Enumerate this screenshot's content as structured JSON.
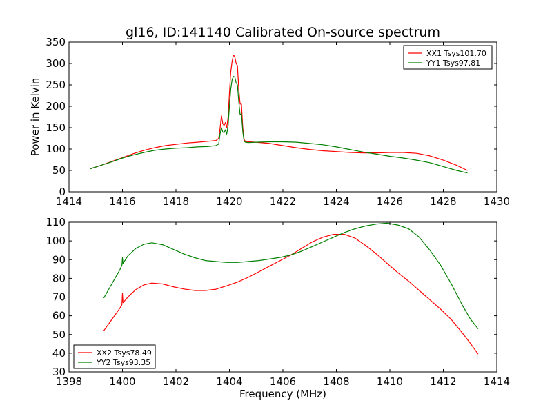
{
  "colors": {
    "red": "#ff0000",
    "green": "#008000"
  },
  "chart_data": [
    {
      "type": "line",
      "title": "gl16, ID:141140 Calibrated On-source spectrum",
      "xlabel": "",
      "ylabel": "Power in Kelvin",
      "xlim": [
        1414,
        1430
      ],
      "ylim": [
        0,
        350
      ],
      "xticks": [
        1414,
        1416,
        1418,
        1420,
        1422,
        1424,
        1426,
        1428,
        1430
      ],
      "yticks": [
        0,
        50,
        100,
        150,
        200,
        250,
        300,
        350
      ],
      "legend_position": "top-right",
      "series": [
        {
          "name": "XX1 Tsys101.70",
          "color": "#ff0000",
          "x": [
            1414.8,
            1415.2,
            1415.6,
            1416.0,
            1416.4,
            1416.8,
            1417.2,
            1417.6,
            1418.0,
            1418.4,
            1418.8,
            1419.2,
            1419.5,
            1419.6,
            1419.65,
            1419.7,
            1419.75,
            1419.8,
            1419.85,
            1419.9,
            1419.95,
            1420.0,
            1420.05,
            1420.1,
            1420.15,
            1420.2,
            1420.25,
            1420.3,
            1420.35,
            1420.4,
            1420.45,
            1420.5,
            1420.55,
            1420.6,
            1420.7,
            1421.0,
            1421.5,
            1422.0,
            1422.5,
            1423.0,
            1423.5,
            1424.0,
            1424.5,
            1425.0,
            1425.5,
            1426.0,
            1426.5,
            1427.0,
            1427.5,
            1428.0,
            1428.5,
            1428.9
          ],
          "y": [
            54,
            62,
            71,
            80,
            89,
            97,
            103,
            108,
            111,
            114,
            116,
            118,
            120,
            125,
            148,
            178,
            160,
            155,
            162,
            150,
            175,
            230,
            280,
            305,
            320,
            316,
            300,
            295,
            240,
            205,
            205,
            150,
            122,
            118,
            117,
            116,
            113,
            108,
            103,
            99,
            96,
            94,
            92,
            91,
            91,
            92,
            92,
            90,
            84,
            74,
            62,
            50
          ]
        },
        {
          "name": "YY1 Tsys97.81",
          "color": "#008000",
          "x": [
            1414.8,
            1415.2,
            1415.6,
            1416.0,
            1416.4,
            1416.8,
            1417.2,
            1417.6,
            1418.0,
            1418.4,
            1418.8,
            1419.2,
            1419.5,
            1419.6,
            1419.65,
            1419.7,
            1419.75,
            1419.8,
            1419.85,
            1419.9,
            1419.95,
            1420.0,
            1420.05,
            1420.1,
            1420.15,
            1420.2,
            1420.25,
            1420.3,
            1420.35,
            1420.4,
            1420.45,
            1420.5,
            1420.55,
            1420.6,
            1420.7,
            1421.0,
            1421.5,
            1422.0,
            1422.5,
            1423.0,
            1423.5,
            1424.0,
            1424.5,
            1425.0,
            1425.5,
            1426.0,
            1426.5,
            1427.0,
            1427.5,
            1428.0,
            1428.5,
            1428.9
          ],
          "y": [
            54,
            62,
            70,
            79,
            86,
            92,
            97,
            100,
            102,
            103,
            105,
            106,
            108,
            112,
            135,
            150,
            140,
            138,
            145,
            135,
            155,
            200,
            240,
            262,
            270,
            268,
            255,
            250,
            210,
            180,
            183,
            140,
            118,
            116,
            115,
            116,
            117,
            117,
            116,
            113,
            110,
            105,
            99,
            93,
            88,
            83,
            79,
            74,
            68,
            59,
            50,
            44
          ]
        }
      ]
    },
    {
      "type": "line",
      "title": "",
      "xlabel": "Frequency (MHz)",
      "ylabel": "",
      "xlim": [
        1398,
        1414
      ],
      "ylim": [
        30,
        110
      ],
      "xticks": [
        1398,
        1400,
        1402,
        1404,
        1406,
        1408,
        1410,
        1412,
        1414
      ],
      "yticks": [
        30,
        40,
        50,
        60,
        70,
        80,
        90,
        100,
        110
      ],
      "legend_position": "bottom-left",
      "series": [
        {
          "name": "XX2 Tsys78.49",
          "color": "#ff0000",
          "x": [
            1399.3,
            1399.6,
            1399.9,
            1399.98,
            1400.0,
            1400.02,
            1400.2,
            1400.5,
            1400.8,
            1401.1,
            1401.5,
            1401.9,
            1402.3,
            1402.7,
            1403.1,
            1403.5,
            1403.9,
            1404.3,
            1404.7,
            1405.1,
            1405.5,
            1405.9,
            1406.3,
            1406.7,
            1407.1,
            1407.5,
            1407.9,
            1408.3,
            1408.7,
            1409.1,
            1409.5,
            1409.9,
            1410.3,
            1410.7,
            1411.1,
            1411.5,
            1411.9,
            1412.3,
            1412.7,
            1413.0,
            1413.3
          ],
          "y": [
            52,
            58,
            64,
            66,
            72,
            67,
            70,
            74,
            76.5,
            77.5,
            77,
            75.5,
            74.3,
            73.5,
            73.5,
            74.2,
            76,
            78,
            80.5,
            83.5,
            86.5,
            89.5,
            92.5,
            96,
            99.5,
            102,
            103.5,
            103.5,
            101.5,
            97.5,
            93,
            88,
            83,
            78.5,
            73.5,
            68.5,
            63.5,
            58,
            51,
            45.5,
            39.5
          ]
        },
        {
          "name": "YY2 Tsys93.35",
          "color": "#008000",
          "x": [
            1399.3,
            1399.6,
            1399.9,
            1399.98,
            1400.0,
            1400.02,
            1400.2,
            1400.5,
            1400.8,
            1401.1,
            1401.5,
            1401.9,
            1402.3,
            1402.7,
            1403.1,
            1403.5,
            1403.9,
            1404.3,
            1404.7,
            1405.1,
            1405.5,
            1405.9,
            1406.3,
            1406.7,
            1407.1,
            1407.5,
            1407.9,
            1408.3,
            1408.7,
            1409.1,
            1409.5,
            1409.9,
            1410.3,
            1410.7,
            1411.1,
            1411.5,
            1411.9,
            1412.3,
            1412.7,
            1413.0,
            1413.3
          ],
          "y": [
            69.5,
            77,
            84.5,
            87,
            91,
            88,
            92,
            96,
            98.2,
            99,
            98,
            95.5,
            93,
            91,
            89.5,
            89,
            88.5,
            88.5,
            89,
            89.5,
            90.3,
            91.2,
            92.5,
            94.5,
            97,
            99.5,
            102,
            104.5,
            106.5,
            108,
            109,
            109.5,
            108.5,
            106.5,
            102,
            95,
            87,
            77,
            66,
            58.5,
            53
          ]
        }
      ]
    }
  ]
}
